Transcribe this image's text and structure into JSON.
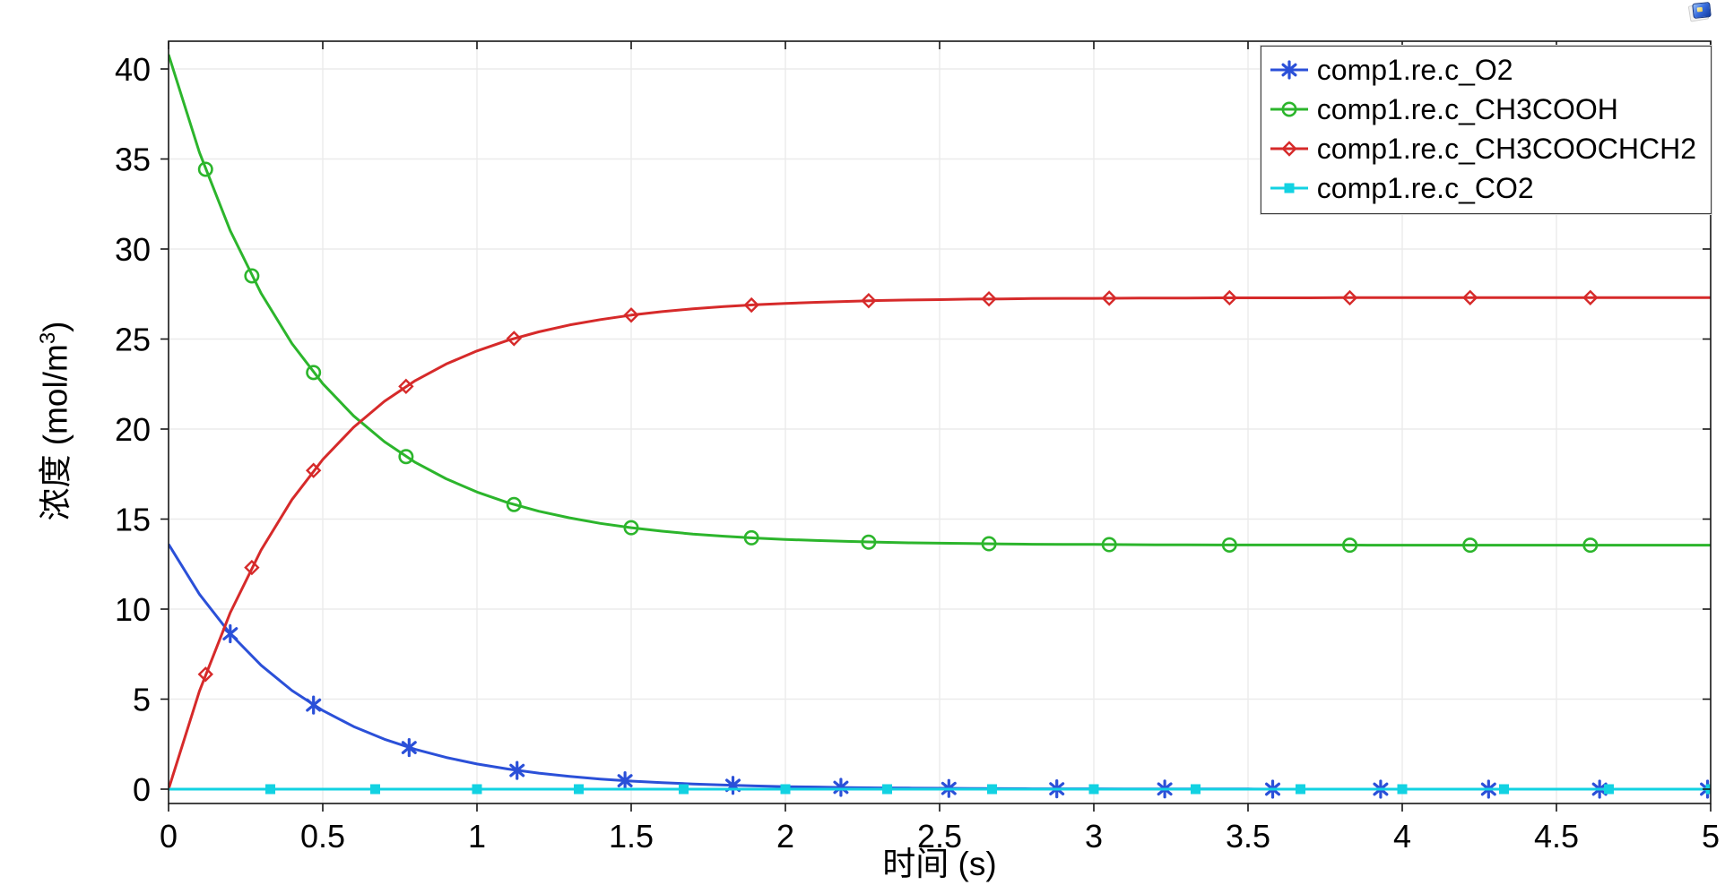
{
  "window": {
    "icon": "plot-window-icon"
  },
  "chart_data": {
    "type": "line",
    "title": "",
    "xlabel": "时间 (s)",
    "ylabel": {
      "prefix": "浓度 (mol/m",
      "sup": "3",
      "suffix": ")"
    },
    "xlim": [
      0,
      5
    ],
    "ylim": [
      0,
      40
    ],
    "grid": true,
    "legend_position": "top-right",
    "x_tick_values": [
      0,
      0.5,
      1,
      1.5,
      2,
      2.5,
      3,
      3.5,
      4,
      4.5,
      5
    ],
    "x_tick_labels": [
      "0",
      "0.5",
      "1",
      "1.5",
      "2",
      "2.5",
      "3",
      "3.5",
      "4",
      "4.5",
      "5"
    ],
    "y_tick_values": [
      0,
      5,
      10,
      15,
      20,
      25,
      30,
      35,
      40
    ],
    "y_tick_labels": [
      "0",
      "5",
      "10",
      "15",
      "20",
      "25",
      "30",
      "35",
      "40"
    ],
    "line_t": [
      0,
      0.1,
      0.2,
      0.3,
      0.4,
      0.5,
      0.6,
      0.7,
      0.8,
      0.9,
      1,
      1.1,
      1.2,
      1.3,
      1.4,
      1.5,
      1.6,
      1.7,
      1.8,
      1.9,
      2,
      2.1,
      2.2,
      2.3,
      2.4,
      2.5,
      2.6,
      2.7,
      2.8,
      2.9,
      3,
      3.1,
      3.2,
      3.3,
      3.4,
      3.5,
      3.6,
      3.7,
      3.8,
      3.9,
      4,
      4.1,
      4.2,
      4.3,
      4.4,
      4.5,
      4.6,
      4.7,
      4.8,
      4.9,
      5
    ],
    "series": [
      {
        "name": "comp1.re.c_O2",
        "color": "#2b50d8",
        "marker": "asterisk",
        "line_y": [
          13.6,
          10.83,
          8.63,
          6.88,
          5.48,
          4.37,
          3.48,
          2.77,
          2.21,
          1.76,
          1.4,
          1.12,
          0.89,
          0.71,
          0.56,
          0.45,
          0.36,
          0.29,
          0.23,
          0.18,
          0.14,
          0.12,
          0.09,
          0.07,
          0.06,
          0.05,
          0.04,
          0.03,
          0.02,
          0.02,
          0.02,
          0.01,
          0.01,
          0.01,
          0.01,
          0.01,
          0,
          0,
          0,
          0,
          0,
          0,
          0,
          0,
          0,
          0,
          0,
          0,
          0,
          0,
          0
        ],
        "marker_x": [
          0.2,
          0.47,
          0.78,
          1.13,
          1.48,
          1.83,
          2.18,
          2.53,
          2.88,
          3.23,
          3.58,
          3.93,
          4.28,
          4.64,
          4.99
        ],
        "marker_y": [
          8.63,
          4.67,
          2.31,
          1.04,
          0.47,
          0.21,
          0.1,
          0.04,
          0.02,
          0.01,
          0,
          0,
          0,
          0,
          0
        ]
      },
      {
        "name": "comp1.re.c_CH3COOH",
        "color": "#2cb52c",
        "marker": "circle",
        "line_y": [
          40.8,
          35.37,
          31.02,
          27.54,
          24.75,
          22.52,
          20.73,
          19.3,
          18.15,
          17.24,
          16.5,
          15.91,
          15.44,
          15.07,
          14.76,
          14.52,
          14.33,
          14.17,
          14.05,
          13.95,
          13.87,
          13.81,
          13.76,
          13.72,
          13.68,
          13.66,
          13.64,
          13.62,
          13.6,
          13.59,
          13.59,
          13.58,
          13.57,
          13.57,
          13.56,
          13.56,
          13.56,
          13.56,
          13.56,
          13.55,
          13.55,
          13.55,
          13.55,
          13.55,
          13.55,
          13.55,
          13.55,
          13.55,
          13.55,
          13.55,
          13.55
        ],
        "marker_x": [
          0.12,
          0.27,
          0.47,
          0.77,
          1.12,
          1.5,
          1.89,
          2.27,
          2.66,
          3.05,
          3.44,
          3.83,
          4.22,
          4.61
        ],
        "marker_y": [
          34.43,
          28.51,
          23.14,
          18.47,
          15.81,
          14.52,
          13.96,
          13.72,
          13.63,
          13.58,
          13.56,
          13.55,
          13.55,
          13.55
        ]
      },
      {
        "name": "comp1.re.c_CH3COOCHCH2",
        "color": "#d62a2a",
        "marker": "diamond",
        "line_y": [
          0,
          5.44,
          9.8,
          13.28,
          16.08,
          18.31,
          20.1,
          21.54,
          22.69,
          23.61,
          24.34,
          24.93,
          25.4,
          25.78,
          26.08,
          26.33,
          26.52,
          26.68,
          26.8,
          26.9,
          26.98,
          27.04,
          27.09,
          27.14,
          27.17,
          27.19,
          27.22,
          27.23,
          27.25,
          27.26,
          27.26,
          27.27,
          27.28,
          27.28,
          27.29,
          27.29,
          27.29,
          27.29,
          27.3,
          27.3,
          27.3,
          27.3,
          27.3,
          27.3,
          27.3,
          27.3,
          27.3,
          27.3,
          27.3,
          27.3,
          27.3
        ],
        "marker_x": [
          0.12,
          0.27,
          0.47,
          0.77,
          1.12,
          1.5,
          1.89,
          2.27,
          2.66,
          3.05,
          3.44,
          3.83,
          4.22,
          4.61
        ],
        "marker_y": [
          6.38,
          12.31,
          17.7,
          22.37,
          25.03,
          26.33,
          26.89,
          27.13,
          27.23,
          27.27,
          27.29,
          27.29,
          27.3,
          27.3
        ]
      },
      {
        "name": "comp1.re.c_CO2",
        "color": "#12d2e2",
        "marker": "square",
        "line_y": [
          0,
          0,
          0,
          0,
          0,
          0,
          0,
          0,
          0,
          0,
          0,
          0,
          0,
          0,
          0,
          0,
          0,
          0,
          0,
          0,
          0,
          0,
          0,
          0,
          0,
          0,
          0,
          0,
          0,
          0,
          0,
          0,
          0,
          0,
          0,
          0,
          0,
          0,
          0,
          0,
          0,
          0,
          0,
          0,
          0,
          0,
          0,
          0,
          0,
          0,
          0
        ],
        "marker_x": [
          0.33,
          0.67,
          1,
          1.33,
          1.67,
          2,
          2.33,
          2.67,
          3,
          3.33,
          3.67,
          4,
          4.33,
          4.67,
          5
        ],
        "marker_y": [
          0,
          0,
          0,
          0,
          0,
          0,
          0,
          0,
          0,
          0,
          0,
          0,
          0,
          0,
          0
        ]
      }
    ]
  }
}
